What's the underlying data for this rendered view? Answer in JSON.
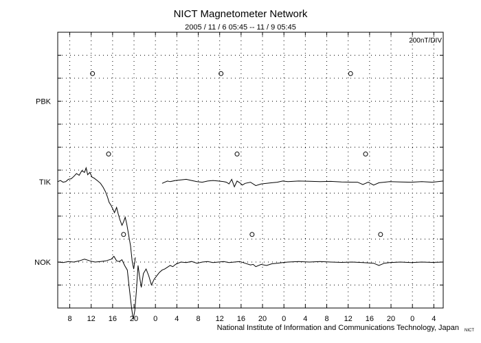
{
  "chart_data": {
    "type": "line",
    "title": "NICT Magnetometer Network",
    "subtitle": "2005 / 11 /  6   05:45 -- 11 /  9   05:45",
    "scale_label": "200nT/DIV",
    "credit": "National Institute of Information and Communications Technology, Japan",
    "credit_mark": "NICT",
    "xlabel": "",
    "ylabel": "",
    "x_unit": "hours from 2005-11-06 05:45",
    "xlim": [
      0,
      72
    ],
    "x_ticks": [
      {
        "x": 2.25,
        "label": "8"
      },
      {
        "x": 6.25,
        "label": "12"
      },
      {
        "x": 10.25,
        "label": "16"
      },
      {
        "x": 14.25,
        "label": "20"
      },
      {
        "x": 18.25,
        "label": "0"
      },
      {
        "x": 22.25,
        "label": "4"
      },
      {
        "x": 26.25,
        "label": "8"
      },
      {
        "x": 30.25,
        "label": "12"
      },
      {
        "x": 34.25,
        "label": "16"
      },
      {
        "x": 38.25,
        "label": "20"
      },
      {
        "x": 42.25,
        "label": "0"
      },
      {
        "x": 46.25,
        "label": "4"
      },
      {
        "x": 50.25,
        "label": "8"
      },
      {
        "x": 54.25,
        "label": "12"
      },
      {
        "x": 58.25,
        "label": "16"
      },
      {
        "x": 62.25,
        "label": "20"
      },
      {
        "x": 66.25,
        "label": "0"
      },
      {
        "x": 70.25,
        "label": "4"
      }
    ],
    "divisions": 12,
    "grid": true,
    "stations": [
      {
        "name": "PBK",
        "division": 3,
        "midnight_markers": [
          6.5,
          30.5,
          54.7
        ]
      },
      {
        "name": "TIK",
        "division": 6.5,
        "midnight_markers": [
          9.5,
          33.5,
          57.5
        ]
      },
      {
        "name": "NOK",
        "division": 10,
        "midnight_markers": [
          12.3,
          36.3,
          60.3
        ]
      }
    ],
    "series": [
      {
        "name": "TIK",
        "units": "nT",
        "points": [
          [
            0,
            0
          ],
          [
            0.5,
            10
          ],
          [
            1,
            -5
          ],
          [
            1.5,
            0
          ],
          [
            2,
            20
          ],
          [
            2.5,
            25
          ],
          [
            3,
            45
          ],
          [
            3.5,
            70
          ],
          [
            4,
            55
          ],
          [
            4.5,
            95
          ],
          [
            5,
            80
          ],
          [
            5.3,
            120
          ],
          [
            5.6,
            60
          ],
          [
            6,
            80
          ],
          [
            6.4,
            40
          ],
          [
            6.8,
            30
          ],
          [
            7.5,
            5
          ],
          [
            8,
            -15
          ],
          [
            8.5,
            -50
          ],
          [
            9,
            -95
          ],
          [
            9.3,
            -135
          ],
          [
            9.6,
            -180
          ],
          [
            10,
            -210
          ],
          [
            10.3,
            -240
          ],
          [
            10.6,
            -270
          ],
          [
            11,
            -225
          ],
          [
            11.3,
            -280
          ],
          [
            11.6,
            -330
          ],
          [
            12,
            -380
          ],
          [
            12.3,
            -350
          ],
          [
            12.6,
            -310
          ],
          [
            12.9,
            -370
          ],
          [
            13.2,
            -450
          ],
          [
            13.6,
            -560
          ],
          [
            13.9,
            -690
          ],
          [
            14.2,
            -760
          ],
          [
            14.5,
            -660
          ]
        ],
        "points2": [
          [
            19.5,
            -15
          ],
          [
            20,
            -5
          ],
          [
            20.5,
            5
          ],
          [
            21,
            0
          ],
          [
            22,
            10
          ],
          [
            23,
            15
          ],
          [
            24,
            20
          ],
          [
            25,
            10
          ],
          [
            26,
            0
          ],
          [
            27,
            -5
          ],
          [
            28,
            5
          ],
          [
            29,
            10
          ],
          [
            30,
            5
          ],
          [
            31,
            0
          ],
          [
            31.5,
            -5
          ],
          [
            32,
            -20
          ],
          [
            32.5,
            20
          ],
          [
            33,
            -45
          ],
          [
            33.5,
            5
          ],
          [
            34,
            -10
          ],
          [
            34.5,
            -30
          ],
          [
            35,
            -15
          ],
          [
            36,
            -5
          ],
          [
            37,
            -35
          ],
          [
            38,
            -20
          ],
          [
            39,
            -15
          ],
          [
            40,
            -10
          ],
          [
            41,
            -5
          ],
          [
            42,
            5
          ],
          [
            43,
            0
          ],
          [
            45,
            5
          ],
          [
            47,
            3
          ],
          [
            49,
            0
          ],
          [
            51,
            2
          ],
          [
            53,
            -3
          ],
          [
            55,
            -5
          ],
          [
            56,
            -5
          ],
          [
            57,
            -25
          ],
          [
            58,
            -5
          ],
          [
            59,
            -30
          ],
          [
            60,
            -10
          ],
          [
            61,
            -5
          ],
          [
            62,
            0
          ],
          [
            64,
            -3
          ],
          [
            66,
            -5
          ],
          [
            68,
            0
          ],
          [
            70,
            -5
          ],
          [
            72,
            5
          ]
        ]
      },
      {
        "name": "NOK",
        "units": "nT",
        "points": [
          [
            0,
            0
          ],
          [
            1,
            -5
          ],
          [
            2,
            5
          ],
          [
            3,
            0
          ],
          [
            4,
            10
          ],
          [
            5,
            25
          ],
          [
            6,
            10
          ],
          [
            6.5,
            5
          ],
          [
            7,
            0
          ],
          [
            8,
            5
          ],
          [
            9,
            10
          ],
          [
            10,
            25
          ],
          [
            10.5,
            50
          ],
          [
            11,
            10
          ],
          [
            11.5,
            5
          ],
          [
            12,
            20
          ],
          [
            12.5,
            -30
          ],
          [
            13,
            -70
          ],
          [
            13.4,
            -240
          ],
          [
            13.8,
            -400
          ],
          [
            14.1,
            -500
          ],
          [
            14.4,
            -420
          ],
          [
            14.7,
            -250
          ],
          [
            15,
            -30
          ],
          [
            15.3,
            -130
          ],
          [
            15.6,
            -220
          ],
          [
            16,
            -100
          ],
          [
            16.5,
            -60
          ],
          [
            17,
            -120
          ],
          [
            17.5,
            -200
          ],
          [
            18,
            -150
          ],
          [
            18.5,
            -120
          ],
          [
            19,
            -90
          ],
          [
            19.5,
            -70
          ],
          [
            20,
            -60
          ],
          [
            21,
            -30
          ],
          [
            21.5,
            -40
          ],
          [
            22,
            -20
          ],
          [
            23,
            0
          ],
          [
            24,
            -5
          ],
          [
            25,
            5
          ],
          [
            26,
            -10
          ],
          [
            27,
            0
          ],
          [
            28,
            5
          ],
          [
            29,
            -5
          ],
          [
            30,
            0
          ],
          [
            31,
            5
          ],
          [
            32,
            -5
          ],
          [
            33,
            0
          ],
          [
            34,
            5
          ],
          [
            35,
            -10
          ],
          [
            36,
            -25
          ],
          [
            36.5,
            -20
          ],
          [
            37,
            -40
          ],
          [
            38,
            -20
          ],
          [
            39,
            -30
          ],
          [
            40,
            -15
          ],
          [
            41,
            -10
          ],
          [
            42,
            -5
          ],
          [
            43,
            0
          ],
          [
            45,
            5
          ],
          [
            47,
            0
          ],
          [
            49,
            5
          ],
          [
            51,
            0
          ],
          [
            53,
            -3
          ],
          [
            55,
            0
          ],
          [
            57,
            -5
          ],
          [
            59,
            -10
          ],
          [
            60,
            -30
          ],
          [
            61,
            -10
          ],
          [
            62,
            -5
          ],
          [
            64,
            0
          ],
          [
            66,
            -5
          ],
          [
            68,
            0
          ],
          [
            70,
            -3
          ],
          [
            72,
            0
          ]
        ]
      }
    ]
  }
}
